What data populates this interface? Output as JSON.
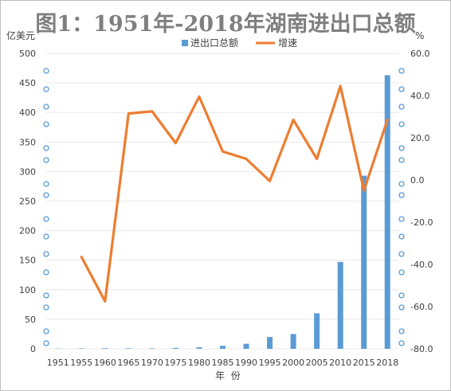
{
  "chart_data": {
    "type": "bar+line",
    "title": "图1：1951年-2018年湖南进出口总额",
    "xlabel": "年  份",
    "ylabel_left": "亿美元",
    "ylabel_right": "%",
    "categories": [
      "1951",
      "1955",
      "1960",
      "1965",
      "1970",
      "1975",
      "1980",
      "1985",
      "1990",
      "1995",
      "2000",
      "2005",
      "2010",
      "2015",
      "2018"
    ],
    "ylim_left": [
      0,
      500
    ],
    "yticks_left": [
      "0",
      "50",
      "100",
      "150",
      "200",
      "250",
      "300",
      "350",
      "400",
      "450",
      "500"
    ],
    "ylim_right": [
      -80,
      60
    ],
    "yticks_right": [
      "-80.0",
      "-60.0",
      "-40.0",
      "-20.0",
      "0.0",
      "20.0",
      "40.0",
      "60.0"
    ],
    "grid": true,
    "legend_position": "top",
    "series": [
      {
        "name": "进出口总额",
        "type": "bar",
        "axis": "left",
        "color": "#5b9bd5",
        "values": [
          0.4,
          0.7,
          1.0,
          0.9,
          0.8,
          1.5,
          2.5,
          5.0,
          8.5,
          20,
          25,
          60,
          147,
          293,
          463
        ]
      },
      {
        "name": "增速",
        "type": "line",
        "axis": "right",
        "color": "#ed7d31",
        "values": [
          null,
          -36.5,
          -57.5,
          31.5,
          32.5,
          17.5,
          39.5,
          13.5,
          10.0,
          -0.5,
          28.5,
          10.0,
          44.5,
          -5.0,
          28.5
        ]
      }
    ]
  }
}
